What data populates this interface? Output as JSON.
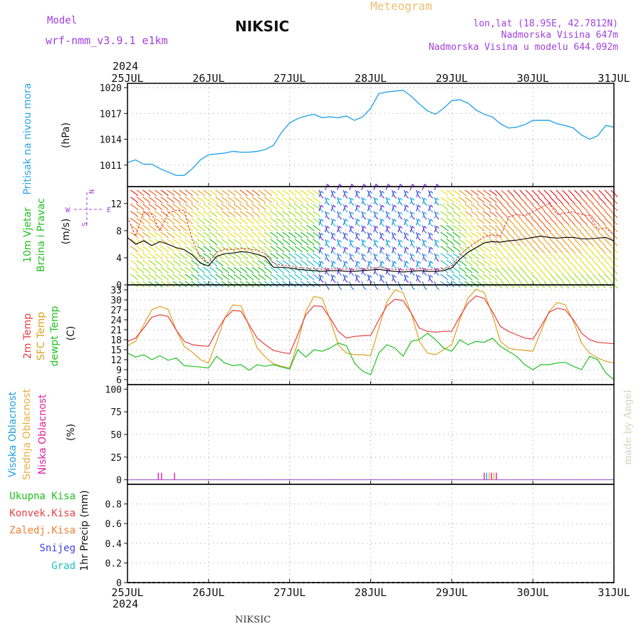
{
  "header": {
    "model_label": "Model",
    "model_value": "wrf-nmm_v3.9.1 e1km",
    "station": "NIKSIC",
    "meteogram": "Meteogram",
    "coords": "lon,lat (18.95E, 42.7812N)",
    "altitude": "Nadmorska Visina 647m",
    "model_altitude": "Nadmorska Visina u modelu 644.092m"
  },
  "footer": {
    "station": "NIKSIC",
    "credit": "made by Angel"
  },
  "time_axis": {
    "year_top": "2024",
    "year_bottom": "2024",
    "labels": [
      "25JUL",
      "26JUL",
      "27JUL",
      "28JUL",
      "29JUL",
      "30JUL",
      "31JUL"
    ]
  },
  "colors": {
    "pressure": "#2aa4e8",
    "temp2m": "#e84040",
    "sfc": "#dfa020",
    "dewpt": "#20c020",
    "cloud_high": "#20a0e0",
    "cloud_mid": "#e8b040",
    "cloud_low": "#e020a0",
    "precip_total": "#20c020",
    "precip_conv": "#e84040",
    "precip_freez": "#f08030",
    "snow": "#4040e0",
    "hail": "#20c0c0",
    "axis_purple": "#a040e0"
  },
  "panels": {
    "pressure": {
      "label": "Pritisak na nivou mora",
      "unit": "(hPa)"
    },
    "wind": {
      "label1": "10m Vjetar",
      "label2": "Brzina i Pravac",
      "unit": "(m/s)",
      "dir_N": "N",
      "dir_W": "W",
      "dir_E": "E",
      "dir_S": "S"
    },
    "temp": {
      "label_2m": "2m Temp",
      "label_sfc": "SFC Temp",
      "label_dew": "dewpt Temp",
      "unit": "(C)"
    },
    "cloud": {
      "label_high": "Visoka Oblacnost",
      "label_mid": "Srednja Oblacnost",
      "label_low": "Niska Oblacnost",
      "unit": "(%)"
    },
    "precip": {
      "label_total": "Ukupna Kisa",
      "label_conv": "Konvek.Kisa",
      "label_freez": "Zaledj.Kisa",
      "label_snow": "Snijeg",
      "label_hail": "Grad",
      "unit": "1hr Precip (mm)"
    }
  },
  "chart_data": [
    {
      "type": "line",
      "panel": "pressure",
      "ylim": [
        1008.5,
        1020.5
      ],
      "yticks": [
        "1011",
        "1014",
        "1017",
        "1020"
      ],
      "ytick_values": [
        1011,
        1014,
        1017,
        1020
      ],
      "x_days": [
        0,
        0.1,
        0.2,
        0.3,
        0.4,
        0.5,
        0.6,
        0.7,
        0.8,
        0.9,
        1.0,
        1.1,
        1.2,
        1.3,
        1.4,
        1.5,
        1.6,
        1.7,
        1.8,
        1.9,
        2.0,
        2.1,
        2.2,
        2.3,
        2.4,
        2.5,
        2.6,
        2.7,
        2.8,
        2.9,
        3.0,
        3.1,
        3.2,
        3.3,
        3.4,
        3.5,
        3.6,
        3.7,
        3.8,
        3.9,
        4.0,
        4.1,
        4.2,
        4.3,
        4.4,
        4.5,
        4.6,
        4.7,
        4.8,
        4.9,
        5.0,
        5.1,
        5.2,
        5.3,
        5.4,
        5.5,
        5.6,
        5.7,
        5.8,
        5.9,
        6.0
      ],
      "series": [
        {
          "values": [
            1011.3,
            1011.6,
            1011.1,
            1011.1,
            1010.6,
            1010.2,
            1009.8,
            1009.8,
            1010.6,
            1011.6,
            1012.2,
            1012.3,
            1012.4,
            1012.6,
            1012.5,
            1012.5,
            1012.6,
            1012.8,
            1013.3,
            1014.8,
            1015.9,
            1016.4,
            1016.7,
            1016.9,
            1016.5,
            1016.6,
            1016.5,
            1016.7,
            1016.2,
            1016.6,
            1017.6,
            1019.3,
            1019.5,
            1019.6,
            1019.7,
            1019.0,
            1018.1,
            1017.3,
            1016.9,
            1017.6,
            1018.5,
            1018.6,
            1018.2,
            1017.4,
            1016.9,
            1016.6,
            1015.8,
            1015.3,
            1015.4,
            1015.7,
            1016.2,
            1016.2,
            1016.2,
            1015.8,
            1015.6,
            1015.3,
            1014.5,
            1014.0,
            1014.4,
            1015.6,
            1015.4
          ]
        }
      ]
    },
    {
      "type": "line",
      "panel": "wind",
      "ylim": [
        0,
        14.5
      ],
      "yticks": [
        "0",
        "4",
        "8",
        "12"
      ],
      "ytick_values": [
        0,
        4,
        8,
        12
      ],
      "x_days": [
        0,
        0.1,
        0.2,
        0.3,
        0.4,
        0.5,
        0.6,
        0.7,
        0.8,
        0.9,
        1.0,
        1.1,
        1.2,
        1.3,
        1.4,
        1.5,
        1.6,
        1.7,
        1.8,
        1.9,
        2.0,
        2.1,
        2.2,
        2.3,
        2.4,
        2.5,
        2.6,
        2.7,
        2.8,
        2.9,
        3.0,
        3.1,
        3.2,
        3.3,
        3.4,
        3.5,
        3.6,
        3.7,
        3.8,
        3.9,
        4.0,
        4.1,
        4.2,
        4.3,
        4.4,
        4.5,
        4.6,
        4.7,
        4.8,
        4.9,
        5.0,
        5.1,
        5.2,
        5.3,
        5.4,
        5.5,
        5.6,
        5.7,
        5.8,
        5.9,
        6.0
      ],
      "series": [
        {
          "name": "speed",
          "values": [
            7.0,
            6.0,
            6.5,
            5.8,
            6.4,
            6.0,
            5.5,
            5.2,
            4.4,
            3.2,
            2.8,
            4.2,
            4.6,
            4.7,
            4.9,
            4.8,
            4.5,
            4.1,
            2.6,
            2.6,
            2.5,
            2.3,
            2.2,
            2.1,
            2.0,
            2.1,
            2.1,
            2.0,
            2.0,
            2.1,
            2.2,
            2.3,
            2.1,
            2.0,
            1.9,
            2.0,
            2.1,
            2.0,
            2.0,
            2.1,
            2.5,
            3.8,
            4.8,
            5.5,
            6.2,
            6.4,
            6.3,
            6.5,
            6.6,
            6.8,
            7.0,
            7.2,
            7.0,
            6.9,
            7.0,
            7.0,
            6.8,
            6.8,
            6.9,
            7.0,
            6.5
          ]
        },
        {
          "name": "gust",
          "values": [
            10.0,
            7.2,
            10.8,
            10.4,
            8.0,
            10.6,
            11.0,
            11.0,
            6.6,
            4.0,
            3.3,
            4.8,
            5.3,
            5.2,
            5.4,
            5.3,
            5.1,
            4.6,
            3.2,
            2.9,
            2.8,
            2.6,
            2.5,
            2.4,
            2.3,
            2.4,
            2.4,
            2.3,
            2.3,
            2.4,
            2.5,
            2.6,
            2.4,
            2.3,
            2.2,
            2.3,
            2.4,
            2.3,
            2.3,
            2.4,
            2.8,
            4.4,
            5.5,
            6.3,
            7.1,
            7.4,
            7.2,
            10.0,
            10.4,
            10.2,
            10.8,
            11.4,
            12.0,
            10.4,
            10.6,
            10.8,
            10.4,
            10.2,
            8.2,
            8.4,
            7.4
          ]
        }
      ]
    },
    {
      "type": "line",
      "panel": "temp",
      "ylim": [
        4.5,
        34.5
      ],
      "yticks": [
        "6",
        "9",
        "12",
        "15",
        "18",
        "21",
        "24",
        "27",
        "30",
        "33"
      ],
      "ytick_values": [
        6,
        9,
        12,
        15,
        18,
        21,
        24,
        27,
        30,
        33
      ],
      "x_days": [
        0,
        0.1,
        0.2,
        0.3,
        0.4,
        0.5,
        0.6,
        0.7,
        0.8,
        0.9,
        1.0,
        1.1,
        1.2,
        1.3,
        1.4,
        1.5,
        1.6,
        1.7,
        1.8,
        1.9,
        2.0,
        2.1,
        2.2,
        2.3,
        2.4,
        2.5,
        2.6,
        2.7,
        2.8,
        2.9,
        3.0,
        3.1,
        3.2,
        3.3,
        3.4,
        3.5,
        3.6,
        3.7,
        3.8,
        3.9,
        4.0,
        4.1,
        4.2,
        4.3,
        4.4,
        4.5,
        4.6,
        4.7,
        4.8,
        4.9,
        5.0,
        5.1,
        5.2,
        5.3,
        5.4,
        5.5,
        5.6,
        5.7,
        5.8,
        5.9,
        6.0
      ],
      "series": [
        {
          "name": "2m Temp",
          "values": [
            17.5,
            18.5,
            21.5,
            24.8,
            25.5,
            25.0,
            21.0,
            17.5,
            16.5,
            16.2,
            16.0,
            20.5,
            24.5,
            26.8,
            26.6,
            22.5,
            18.5,
            16.5,
            14.8,
            14.2,
            13.8,
            19.5,
            25.5,
            28.2,
            28.0,
            24.5,
            20.5,
            18.5,
            19.0,
            19.2,
            19.3,
            24.0,
            28.2,
            30.2,
            29.8,
            26.0,
            21.5,
            20.5,
            20.3,
            20.5,
            20.6,
            25.0,
            29.0,
            31.2,
            30.4,
            26.5,
            22.0,
            20.5,
            19.5,
            18.5,
            18.2,
            22.0,
            26.2,
            27.5,
            27.0,
            24.0,
            20.0,
            18.0,
            17.2,
            17.0,
            16.8
          ]
        },
        {
          "name": "SFC Temp",
          "values": [
            16.2,
            17.5,
            22.5,
            27.0,
            28.0,
            27.2,
            21.0,
            16.0,
            14.2,
            12.0,
            11.0,
            17.5,
            24.5,
            28.5,
            28.2,
            22.0,
            15.5,
            12.8,
            10.8,
            10.0,
            9.5,
            17.0,
            26.5,
            31.0,
            30.5,
            24.0,
            16.5,
            14.0,
            13.5,
            13.5,
            13.2,
            21.5,
            29.5,
            33.0,
            32.2,
            26.0,
            17.5,
            14.0,
            13.5,
            15.0,
            16.5,
            24.0,
            30.5,
            33.2,
            32.2,
            25.5,
            17.5,
            15.5,
            15.0,
            14.8,
            14.5,
            20.5,
            26.5,
            29.2,
            28.5,
            23.5,
            17.0,
            14.0,
            12.5,
            11.5,
            11.0
          ]
        },
        {
          "name": "dewpt Temp",
          "values": [
            14.0,
            12.8,
            13.5,
            12.0,
            13.2,
            11.8,
            12.5,
            10.2,
            10.0,
            9.8,
            9.5,
            13.0,
            11.0,
            10.2,
            10.5,
            8.8,
            10.5,
            10.0,
            10.5,
            9.8,
            9.2,
            15.0,
            12.8,
            15.0,
            14.5,
            15.5,
            17.0,
            16.2,
            11.0,
            8.5,
            7.5,
            14.0,
            16.5,
            15.5,
            13.0,
            17.5,
            18.0,
            20.0,
            18.0,
            15.5,
            14.5,
            18.0,
            16.5,
            17.5,
            17.2,
            18.5,
            16.0,
            14.5,
            13.0,
            10.5,
            9.0,
            10.5,
            10.5,
            11.0,
            11.2,
            10.0,
            9.0,
            13.0,
            12.0,
            8.0,
            6.0
          ]
        }
      ]
    },
    {
      "type": "bar",
      "panel": "cloud",
      "ylim": [
        -5,
        105
      ],
      "yticks": [
        "0",
        "25",
        "50",
        "75",
        "100"
      ],
      "ytick_values": [
        0,
        25,
        50,
        75,
        100
      ],
      "marks": [
        {
          "day": 0.38,
          "value": 5,
          "series": "low"
        },
        {
          "day": 0.42,
          "value": 5,
          "series": "low"
        },
        {
          "day": 0.58,
          "value": 5,
          "series": "low"
        },
        {
          "day": 4.4,
          "value": 5,
          "series": "low"
        },
        {
          "day": 4.43,
          "value": 5,
          "series": "high"
        },
        {
          "day": 4.46,
          "value": 5,
          "series": "mid"
        },
        {
          "day": 4.49,
          "value": 5,
          "series": "low"
        },
        {
          "day": 4.52,
          "value": 5,
          "series": "mid"
        },
        {
          "day": 4.55,
          "value": 5,
          "series": "low"
        }
      ]
    },
    {
      "type": "bar",
      "panel": "precip",
      "ylim": [
        0,
        1.0
      ],
      "yticks": [
        "0",
        "0.2",
        "0.4",
        "0.6",
        "0.8"
      ],
      "ytick_values": [
        0,
        0.2,
        0.4,
        0.6,
        0.8
      ],
      "values": []
    }
  ]
}
